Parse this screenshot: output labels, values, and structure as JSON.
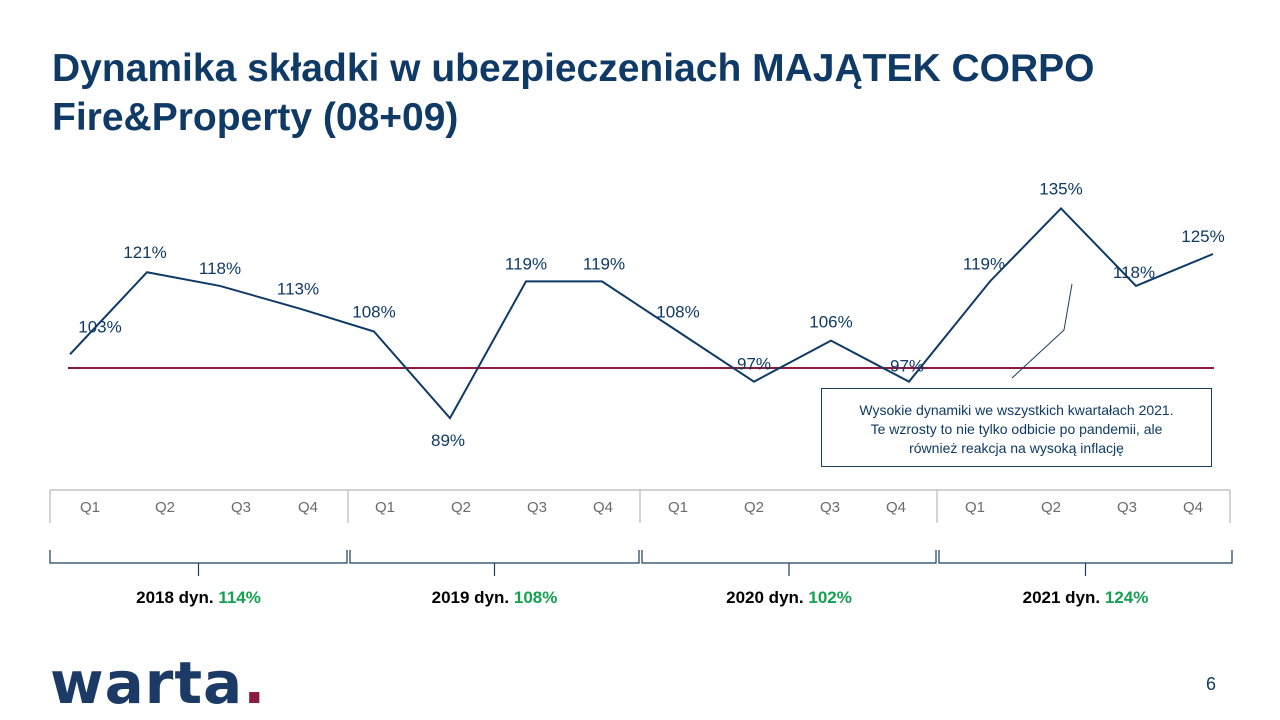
{
  "title": {
    "line1": "Dynamika składki w ubezpieczeniach MAJĄTEK CORPO",
    "line2": "Fire&Property (08+09)"
  },
  "chart_data": {
    "type": "line",
    "x": [
      "Q1",
      "Q2",
      "Q3",
      "Q4",
      "Q1",
      "Q2",
      "Q3",
      "Q4",
      "Q1",
      "Q2",
      "Q3",
      "Q4",
      "Q1",
      "Q2",
      "Q3",
      "Q4"
    ],
    "values": [
      103,
      121,
      118,
      113,
      108,
      89,
      119,
      119,
      108,
      97,
      106,
      97,
      119,
      135,
      118,
      125
    ],
    "labels": [
      "103%",
      "121%",
      "118%",
      "113%",
      "108%",
      "89%",
      "119%",
      "119%",
      "108%",
      "97%",
      "106%",
      "97%",
      "119%",
      "135%",
      "118%",
      "125%"
    ],
    "reference_line": 100,
    "years": [
      {
        "label": "2018 dyn.",
        "dyn": "114%"
      },
      {
        "label": "2019 dyn.",
        "dyn": "108%"
      },
      {
        "label": "2020 dyn.",
        "dyn": "102%"
      },
      {
        "label": "2021 dyn.",
        "dyn": "124%"
      }
    ],
    "colors": {
      "line": "#0f3a66",
      "reference": "#8b1a3e",
      "dyn": "#14a050"
    }
  },
  "callout": {
    "line1": "Wysokie dynamiki we wszystkich kwartałach 2021.",
    "line2": "Te wzrosty to nie tylko odbicie po pandemii, ale",
    "line3": "również reakcja na wysoką inflację"
  },
  "logo": {
    "text": "warta",
    "dot": "."
  },
  "page_number": "6"
}
